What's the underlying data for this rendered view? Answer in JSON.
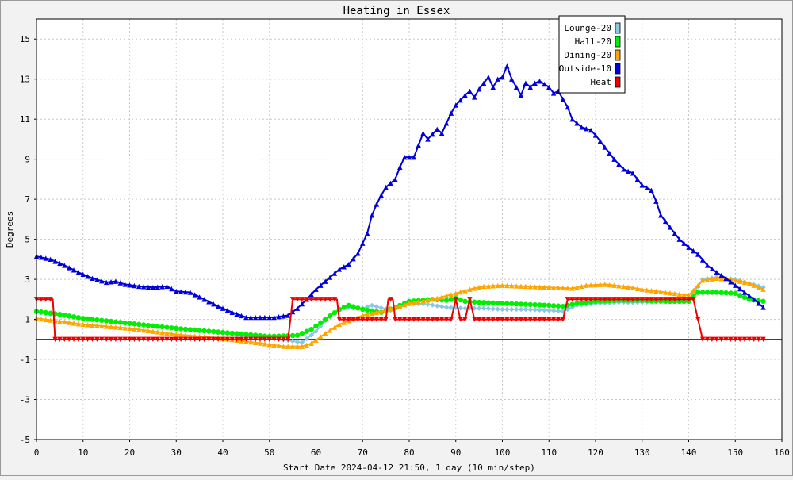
{
  "chart_data": {
    "type": "line",
    "title": "Heating in Essex",
    "xlabel": "Start Date 2024-04-12 21:50, 1 day (10 min/step)",
    "ylabel": "Degrees",
    "xlim": [
      0,
      160
    ],
    "ylim": [
      -5,
      16
    ],
    "xticks": [
      0,
      10,
      20,
      30,
      40,
      50,
      60,
      70,
      80,
      90,
      100,
      110,
      120,
      130,
      140,
      150,
      160
    ],
    "yticks": [
      -5,
      -3,
      -1,
      1,
      3,
      5,
      7,
      9,
      11,
      13,
      15
    ],
    "grid": true,
    "legend_position": "top-right",
    "zero_line": 0,
    "series": [
      {
        "name": "Lounge-20",
        "color": "#87c8e6",
        "marker": "diamond",
        "points": [
          [
            0,
            1.35
          ],
          [
            10,
            1.05
          ],
          [
            20,
            0.8
          ],
          [
            30,
            0.55
          ],
          [
            40,
            0.3
          ],
          [
            50,
            0.05
          ],
          [
            54,
            -0.05
          ],
          [
            57,
            -0.15
          ],
          [
            60,
            0.4
          ],
          [
            63,
            1.2
          ],
          [
            66,
            1.6
          ],
          [
            70,
            1.55
          ],
          [
            72,
            1.7
          ],
          [
            76,
            1.45
          ],
          [
            80,
            1.8
          ],
          [
            84,
            1.75
          ],
          [
            88,
            1.6
          ],
          [
            92,
            1.55
          ],
          [
            96,
            1.55
          ],
          [
            100,
            1.5
          ],
          [
            105,
            1.5
          ],
          [
            110,
            1.45
          ],
          [
            113,
            1.4
          ],
          [
            116,
            1.7
          ],
          [
            120,
            1.8
          ],
          [
            125,
            1.85
          ],
          [
            130,
            1.85
          ],
          [
            135,
            1.9
          ],
          [
            140,
            1.95
          ],
          [
            143,
            3.0
          ],
          [
            146,
            3.1
          ],
          [
            150,
            3.0
          ],
          [
            153,
            2.8
          ],
          [
            156,
            2.6
          ]
        ]
      },
      {
        "name": "Hall-20",
        "color": "#00ee00",
        "marker": "circle",
        "points": [
          [
            0,
            1.4
          ],
          [
            5,
            1.25
          ],
          [
            10,
            1.05
          ],
          [
            20,
            0.8
          ],
          [
            30,
            0.55
          ],
          [
            40,
            0.35
          ],
          [
            50,
            0.15
          ],
          [
            56,
            0.2
          ],
          [
            59,
            0.5
          ],
          [
            62,
            1.0
          ],
          [
            65,
            1.5
          ],
          [
            67,
            1.7
          ],
          [
            70,
            1.5
          ],
          [
            74,
            1.35
          ],
          [
            77,
            1.6
          ],
          [
            80,
            1.9
          ],
          [
            85,
            2.0
          ],
          [
            88,
            1.95
          ],
          [
            90,
            2.05
          ],
          [
            92,
            1.9
          ],
          [
            95,
            1.85
          ],
          [
            100,
            1.8
          ],
          [
            105,
            1.75
          ],
          [
            110,
            1.7
          ],
          [
            113,
            1.65
          ],
          [
            116,
            1.8
          ],
          [
            120,
            1.9
          ],
          [
            125,
            1.95
          ],
          [
            130,
            1.95
          ],
          [
            135,
            1.9
          ],
          [
            140,
            1.9
          ],
          [
            142,
            2.35
          ],
          [
            146,
            2.35
          ],
          [
            150,
            2.3
          ],
          [
            153,
            2.0
          ],
          [
            156,
            1.9
          ]
        ]
      },
      {
        "name": "Dining-20",
        "color": "#ffa500",
        "marker": "triangle-up",
        "points": [
          [
            0,
            1.05
          ],
          [
            10,
            0.75
          ],
          [
            20,
            0.55
          ],
          [
            30,
            0.25
          ],
          [
            40,
            0.05
          ],
          [
            50,
            -0.25
          ],
          [
            53,
            -0.35
          ],
          [
            57,
            -0.35
          ],
          [
            59,
            -0.2
          ],
          [
            62,
            0.3
          ],
          [
            65,
            0.75
          ],
          [
            70,
            1.2
          ],
          [
            75,
            1.45
          ],
          [
            80,
            1.8
          ],
          [
            85,
            2.0
          ],
          [
            90,
            2.3
          ],
          [
            93,
            2.5
          ],
          [
            96,
            2.65
          ],
          [
            100,
            2.7
          ],
          [
            105,
            2.65
          ],
          [
            110,
            2.6
          ],
          [
            115,
            2.55
          ],
          [
            118,
            2.7
          ],
          [
            122,
            2.75
          ],
          [
            126,
            2.65
          ],
          [
            130,
            2.5
          ],
          [
            135,
            2.35
          ],
          [
            140,
            2.2
          ],
          [
            143,
            2.95
          ],
          [
            146,
            3.05
          ],
          [
            149,
            3.0
          ],
          [
            153,
            2.8
          ],
          [
            156,
            2.5
          ]
        ]
      },
      {
        "name": "Outside-10",
        "color": "#0000dd",
        "marker": "triangle-up",
        "points": [
          [
            0,
            4.15
          ],
          [
            3,
            4.0
          ],
          [
            6,
            3.7
          ],
          [
            9,
            3.35
          ],
          [
            12,
            3.05
          ],
          [
            15,
            2.85
          ],
          [
            17,
            2.9
          ],
          [
            19,
            2.75
          ],
          [
            22,
            2.65
          ],
          [
            25,
            2.6
          ],
          [
            28,
            2.65
          ],
          [
            30,
            2.4
          ],
          [
            33,
            2.35
          ],
          [
            36,
            2.0
          ],
          [
            39,
            1.65
          ],
          [
            42,
            1.35
          ],
          [
            45,
            1.1
          ],
          [
            48,
            1.1
          ],
          [
            51,
            1.1
          ],
          [
            54,
            1.2
          ],
          [
            56,
            1.55
          ],
          [
            58,
            2.0
          ],
          [
            60,
            2.5
          ],
          [
            63,
            3.1
          ],
          [
            65,
            3.5
          ],
          [
            67,
            3.75
          ],
          [
            69,
            4.3
          ],
          [
            71,
            5.3
          ],
          [
            72,
            6.2
          ],
          [
            73,
            6.75
          ],
          [
            74,
            7.2
          ],
          [
            75,
            7.6
          ],
          [
            77,
            8.0
          ],
          [
            78,
            8.6
          ],
          [
            79,
            9.1
          ],
          [
            81,
            9.1
          ],
          [
            82,
            9.7
          ],
          [
            83,
            10.3
          ],
          [
            84,
            10.0
          ],
          [
            86,
            10.5
          ],
          [
            87,
            10.3
          ],
          [
            89,
            11.3
          ],
          [
            90,
            11.7
          ],
          [
            92,
            12.2
          ],
          [
            93,
            12.4
          ],
          [
            94,
            12.1
          ],
          [
            95,
            12.5
          ],
          [
            97,
            13.1
          ],
          [
            98,
            12.6
          ],
          [
            99,
            13.0
          ],
          [
            100,
            13.1
          ],
          [
            101,
            13.65
          ],
          [
            102,
            13.0
          ],
          [
            103,
            12.6
          ],
          [
            104,
            12.2
          ],
          [
            105,
            12.8
          ],
          [
            106,
            12.6
          ],
          [
            107,
            12.8
          ],
          [
            108,
            12.9
          ],
          [
            110,
            12.6
          ],
          [
            111,
            12.3
          ],
          [
            112,
            12.4
          ],
          [
            113,
            12.0
          ],
          [
            114,
            11.6
          ],
          [
            115,
            11.0
          ],
          [
            117,
            10.6
          ],
          [
            119,
            10.45
          ],
          [
            120,
            10.2
          ],
          [
            122,
            9.6
          ],
          [
            124,
            9.0
          ],
          [
            126,
            8.5
          ],
          [
            128,
            8.3
          ],
          [
            130,
            7.7
          ],
          [
            132,
            7.45
          ],
          [
            133,
            6.9
          ],
          [
            134,
            6.2
          ],
          [
            136,
            5.6
          ],
          [
            138,
            5.0
          ],
          [
            140,
            4.6
          ],
          [
            142,
            4.25
          ],
          [
            144,
            3.7
          ],
          [
            146,
            3.35
          ],
          [
            148,
            3.05
          ],
          [
            150,
            2.7
          ],
          [
            152,
            2.35
          ],
          [
            154,
            2.0
          ],
          [
            156,
            1.6
          ]
        ]
      },
      {
        "name": "Heat",
        "color": "#ee0000",
        "marker": "triangle-down",
        "points": [
          [
            0,
            2
          ],
          [
            3.5,
            2
          ],
          [
            4,
            0
          ],
          [
            54,
            0
          ],
          [
            55,
            2
          ],
          [
            64.5,
            2
          ],
          [
            65,
            1
          ],
          [
            75,
            1
          ],
          [
            75.5,
            2
          ],
          [
            76.5,
            2
          ],
          [
            77,
            1
          ],
          [
            89,
            1
          ],
          [
            90,
            2
          ],
          [
            91,
            1
          ],
          [
            92,
            1
          ],
          [
            93,
            2
          ],
          [
            94,
            1
          ],
          [
            113,
            1
          ],
          [
            114,
            2
          ],
          [
            141,
            2
          ],
          [
            143,
            0
          ],
          [
            156,
            0
          ]
        ]
      }
    ]
  }
}
